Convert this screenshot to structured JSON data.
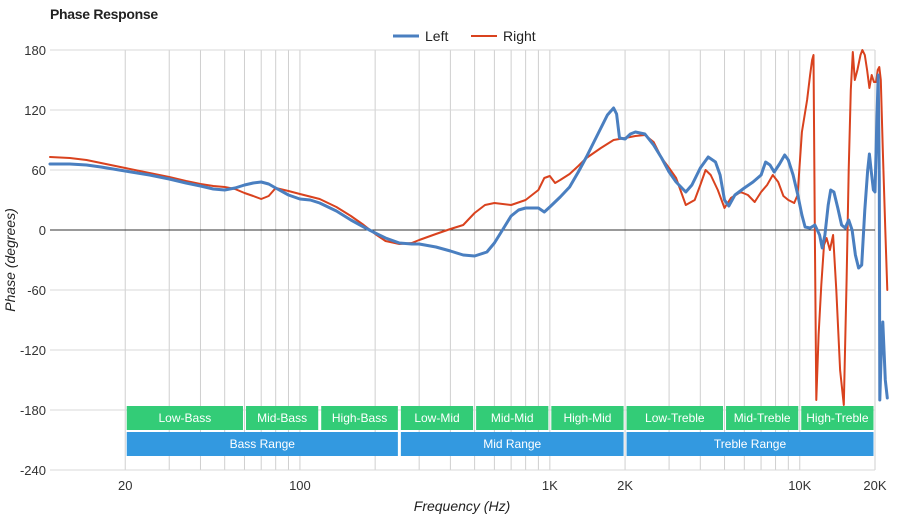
{
  "chart_data": {
    "type": "line",
    "title": "Phase Response",
    "xlabel": "Frequency (Hz)",
    "ylabel": "Phase (degrees)",
    "x_scale": "log",
    "xlim": [
      10,
      20000
    ],
    "ylim": [
      -240,
      180
    ],
    "grid": true,
    "legend_position": "top-center",
    "y_ticks": [
      180,
      120,
      60,
      0,
      -60,
      -120,
      -180,
      -240
    ],
    "x_ticks": [
      {
        "value": 20,
        "label": "20"
      },
      {
        "value": 100,
        "label": "100"
      },
      {
        "value": 1000,
        "label": "1K"
      },
      {
        "value": 2000,
        "label": "2K"
      },
      {
        "value": 10000,
        "label": "10K"
      },
      {
        "value": 20000,
        "label": "20K"
      }
    ],
    "series": [
      {
        "name": "Left",
        "color": "#4a7fc0",
        "points": [
          [
            10,
            66
          ],
          [
            12,
            66
          ],
          [
            14,
            65
          ],
          [
            16,
            63
          ],
          [
            20,
            59
          ],
          [
            25,
            55
          ],
          [
            30,
            51
          ],
          [
            35,
            47
          ],
          [
            40,
            44
          ],
          [
            45,
            41
          ],
          [
            50,
            40
          ],
          [
            55,
            42
          ],
          [
            60,
            45
          ],
          [
            65,
            47
          ],
          [
            70,
            48
          ],
          [
            75,
            46
          ],
          [
            80,
            42
          ],
          [
            90,
            35
          ],
          [
            100,
            31
          ],
          [
            110,
            30
          ],
          [
            120,
            27
          ],
          [
            140,
            19
          ],
          [
            160,
            10
          ],
          [
            180,
            3
          ],
          [
            200,
            -3
          ],
          [
            220,
            -8
          ],
          [
            250,
            -13
          ],
          [
            280,
            -14
          ],
          [
            300,
            -14
          ],
          [
            350,
            -17
          ],
          [
            400,
            -21
          ],
          [
            450,
            -25
          ],
          [
            500,
            -26
          ],
          [
            560,
            -22
          ],
          [
            600,
            -13
          ],
          [
            650,
            1
          ],
          [
            700,
            14
          ],
          [
            750,
            20
          ],
          [
            800,
            22
          ],
          [
            900,
            22
          ],
          [
            950,
            18
          ],
          [
            1000,
            23
          ],
          [
            1100,
            33
          ],
          [
            1200,
            43
          ],
          [
            1300,
            58
          ],
          [
            1400,
            73
          ],
          [
            1500,
            88
          ],
          [
            1600,
            102
          ],
          [
            1700,
            115
          ],
          [
            1800,
            122
          ],
          [
            1850,
            116
          ],
          [
            1900,
            92
          ],
          [
            2000,
            91
          ],
          [
            2100,
            96
          ],
          [
            2200,
            98
          ],
          [
            2400,
            96
          ],
          [
            2600,
            85
          ],
          [
            2800,
            72
          ],
          [
            3000,
            58
          ],
          [
            3200,
            48
          ],
          [
            3500,
            38
          ],
          [
            3700,
            45
          ],
          [
            4000,
            62
          ],
          [
            4300,
            73
          ],
          [
            4600,
            68
          ],
          [
            4800,
            55
          ],
          [
            5000,
            30
          ],
          [
            5200,
            24
          ],
          [
            5500,
            35
          ],
          [
            6000,
            42
          ],
          [
            6500,
            48
          ],
          [
            7000,
            55
          ],
          [
            7300,
            68
          ],
          [
            7600,
            65
          ],
          [
            7900,
            58
          ],
          [
            8300,
            66
          ],
          [
            8700,
            75
          ],
          [
            9000,
            70
          ],
          [
            9400,
            55
          ],
          [
            9800,
            36
          ],
          [
            10200,
            15
          ],
          [
            10500,
            3
          ],
          [
            11000,
            2
          ],
          [
            11500,
            5
          ],
          [
            12000,
            -5
          ],
          [
            12300,
            -18
          ],
          [
            12600,
            -5
          ],
          [
            13000,
            25
          ],
          [
            13300,
            40
          ],
          [
            13700,
            38
          ],
          [
            14200,
            22
          ],
          [
            14700,
            5
          ],
          [
            15200,
            2
          ],
          [
            15700,
            10
          ],
          [
            16200,
            0
          ],
          [
            16700,
            -25
          ],
          [
            17200,
            -38
          ],
          [
            17700,
            -35
          ],
          [
            18200,
            20
          ],
          [
            18700,
            60
          ],
          [
            19000,
            76
          ],
          [
            19300,
            60
          ],
          [
            19700,
            40
          ],
          [
            20000,
            38
          ],
          [
            20300,
            100
          ],
          [
            20600,
            155
          ],
          [
            20800,
            50
          ],
          [
            20900,
            -170
          ],
          [
            21200,
            -120
          ],
          [
            21500,
            -92
          ],
          [
            22000,
            -150
          ],
          [
            22400,
            -168
          ]
        ]
      },
      {
        "name": "Right",
        "color": "#d9421e",
        "points": [
          [
            10,
            73
          ],
          [
            12,
            72
          ],
          [
            14,
            70
          ],
          [
            16,
            67
          ],
          [
            20,
            62
          ],
          [
            25,
            57
          ],
          [
            30,
            53
          ],
          [
            35,
            49
          ],
          [
            40,
            46
          ],
          [
            45,
            44
          ],
          [
            50,
            43
          ],
          [
            55,
            41
          ],
          [
            60,
            37
          ],
          [
            65,
            34
          ],
          [
            70,
            31
          ],
          [
            75,
            34
          ],
          [
            80,
            42
          ],
          [
            90,
            39
          ],
          [
            100,
            36
          ],
          [
            120,
            31
          ],
          [
            140,
            23
          ],
          [
            160,
            14
          ],
          [
            180,
            5
          ],
          [
            200,
            -4
          ],
          [
            220,
            -11
          ],
          [
            250,
            -14
          ],
          [
            280,
            -13
          ],
          [
            300,
            -10
          ],
          [
            350,
            -4
          ],
          [
            400,
            1
          ],
          [
            450,
            5
          ],
          [
            500,
            17
          ],
          [
            550,
            25
          ],
          [
            600,
            27
          ],
          [
            700,
            25
          ],
          [
            800,
            30
          ],
          [
            900,
            40
          ],
          [
            950,
            52
          ],
          [
            1000,
            54
          ],
          [
            1050,
            47
          ],
          [
            1100,
            50
          ],
          [
            1200,
            56
          ],
          [
            1300,
            64
          ],
          [
            1400,
            72
          ],
          [
            1600,
            82
          ],
          [
            1800,
            90
          ],
          [
            2000,
            92
          ],
          [
            2200,
            94
          ],
          [
            2400,
            95
          ],
          [
            2600,
            88
          ],
          [
            2800,
            72
          ],
          [
            3000,
            62
          ],
          [
            3200,
            52
          ],
          [
            3500,
            25
          ],
          [
            3800,
            30
          ],
          [
            4000,
            45
          ],
          [
            4200,
            60
          ],
          [
            4400,
            55
          ],
          [
            4700,
            40
          ],
          [
            5000,
            22
          ],
          [
            5300,
            32
          ],
          [
            5800,
            38
          ],
          [
            6200,
            35
          ],
          [
            6600,
            28
          ],
          [
            7000,
            38
          ],
          [
            7400,
            45
          ],
          [
            7800,
            55
          ],
          [
            8200,
            48
          ],
          [
            8600,
            34
          ],
          [
            9000,
            30
          ],
          [
            9500,
            27
          ],
          [
            9800,
            35
          ],
          [
            10200,
            98
          ],
          [
            10700,
            130
          ],
          [
            11000,
            155
          ],
          [
            11200,
            170
          ],
          [
            11350,
            175
          ],
          [
            11500,
            -10
          ],
          [
            11650,
            -170
          ],
          [
            11900,
            -105
          ],
          [
            12200,
            -55
          ],
          [
            12500,
            -15
          ],
          [
            12800,
            -8
          ],
          [
            13200,
            -20
          ],
          [
            13600,
            -5
          ],
          [
            14000,
            -60
          ],
          [
            14500,
            -140
          ],
          [
            15000,
            -175
          ],
          [
            15400,
            -50
          ],
          [
            15700,
            60
          ],
          [
            16000,
            140
          ],
          [
            16300,
            178
          ],
          [
            16600,
            150
          ],
          [
            17000,
            160
          ],
          [
            17500,
            175
          ],
          [
            17800,
            180
          ],
          [
            18200,
            175
          ],
          [
            18600,
            160
          ],
          [
            19000,
            142
          ],
          [
            19400,
            155
          ],
          [
            19800,
            148
          ],
          [
            20200,
            148
          ],
          [
            20500,
            160
          ],
          [
            20800,
            163
          ],
          [
            21100,
            150
          ],
          [
            21500,
            80
          ],
          [
            22000,
            0
          ],
          [
            22400,
            -60
          ]
        ]
      }
    ],
    "bands_row1": [
      {
        "label": "Low-Bass",
        "from": 20,
        "to": 60
      },
      {
        "label": "Mid-Bass",
        "from": 60,
        "to": 120
      },
      {
        "label": "High-Bass",
        "from": 120,
        "to": 250
      },
      {
        "label": "Low-Mid",
        "from": 250,
        "to": 500
      },
      {
        "label": "Mid-Mid",
        "from": 500,
        "to": 1000
      },
      {
        "label": "High-Mid",
        "from": 1000,
        "to": 2000
      },
      {
        "label": "Low-Treble",
        "from": 2000,
        "to": 5000
      },
      {
        "label": "Mid-Treble",
        "from": 5000,
        "to": 10000
      },
      {
        "label": "High-Treble",
        "from": 10000,
        "to": 20000
      }
    ],
    "bands_row2": [
      {
        "label": "Bass Range",
        "from": 20,
        "to": 250
      },
      {
        "label": "Mid Range",
        "from": 250,
        "to": 2000
      },
      {
        "label": "Treble Range",
        "from": 2000,
        "to": 20000
      }
    ],
    "band_colors": {
      "row1": "#33cc77",
      "row2": "#3399e0"
    }
  }
}
